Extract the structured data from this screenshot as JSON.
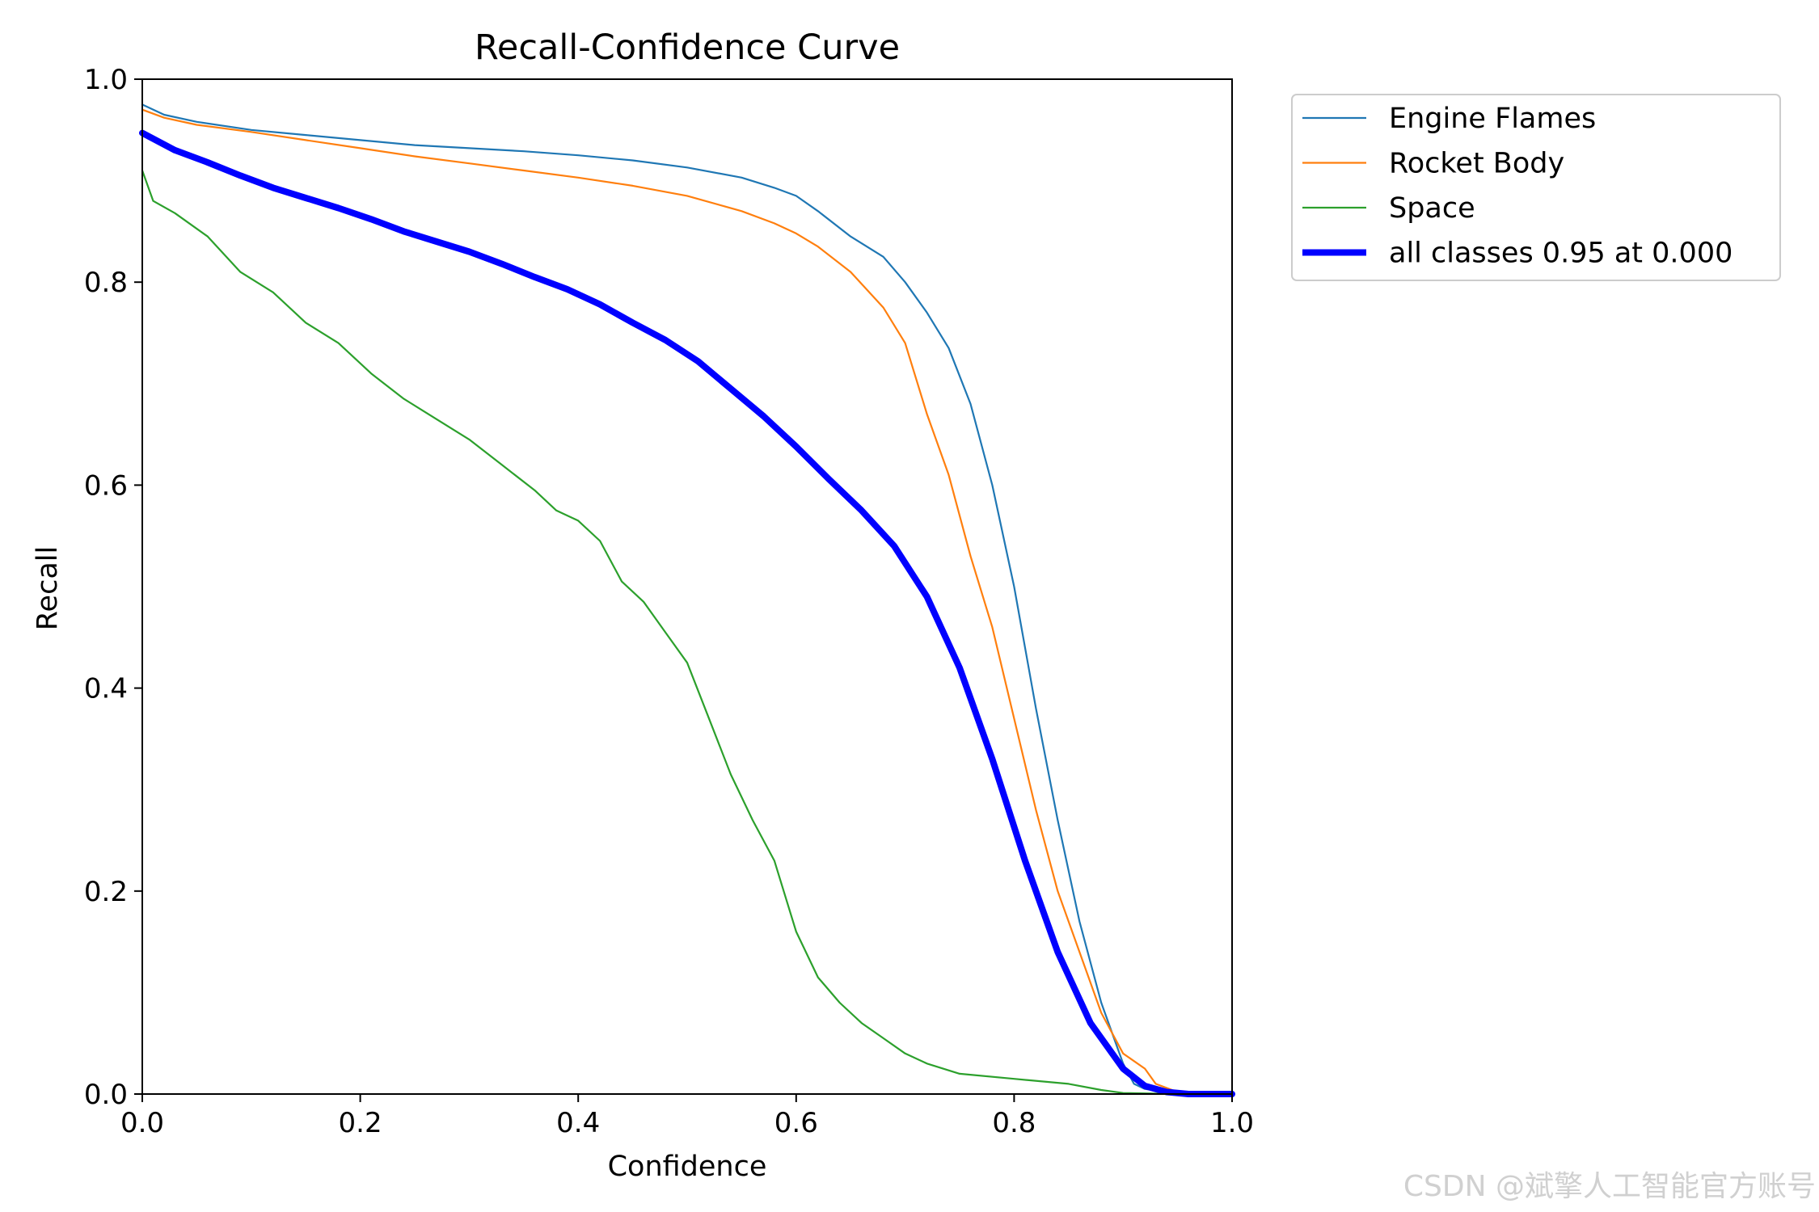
{
  "chart_data": {
    "type": "line",
    "title": "Recall-Confidence Curve",
    "xlabel": "Confidence",
    "ylabel": "Recall",
    "xlim": [
      0,
      1
    ],
    "ylim": [
      0,
      1
    ],
    "grid": false,
    "legend_position": "outside-top-right",
    "xticks": [
      "0.0",
      "0.2",
      "0.4",
      "0.6",
      "0.8",
      "1.0"
    ],
    "yticks": [
      "0.0",
      "0.2",
      "0.4",
      "0.6",
      "0.8",
      "1.0"
    ],
    "series": [
      {
        "name": "Engine Flames",
        "color": "#1f77b4",
        "width": "thin",
        "x": [
          0.0,
          0.02,
          0.05,
          0.1,
          0.15,
          0.2,
          0.25,
          0.3,
          0.35,
          0.4,
          0.45,
          0.5,
          0.55,
          0.58,
          0.6,
          0.62,
          0.65,
          0.68,
          0.7,
          0.72,
          0.74,
          0.76,
          0.78,
          0.8,
          0.82,
          0.84,
          0.86,
          0.88,
          0.9,
          0.91,
          0.92,
          0.94,
          0.96,
          1.0
        ],
        "y": [
          0.975,
          0.965,
          0.958,
          0.95,
          0.945,
          0.94,
          0.935,
          0.932,
          0.929,
          0.925,
          0.92,
          0.913,
          0.903,
          0.893,
          0.885,
          0.87,
          0.845,
          0.825,
          0.8,
          0.77,
          0.735,
          0.68,
          0.6,
          0.5,
          0.38,
          0.27,
          0.17,
          0.09,
          0.03,
          0.01,
          0.005,
          0.002,
          0.0,
          0.0
        ]
      },
      {
        "name": "Rocket Body",
        "color": "#ff7f0e",
        "width": "thin",
        "x": [
          0.0,
          0.02,
          0.05,
          0.1,
          0.15,
          0.2,
          0.25,
          0.3,
          0.35,
          0.4,
          0.45,
          0.5,
          0.55,
          0.58,
          0.6,
          0.62,
          0.65,
          0.68,
          0.7,
          0.72,
          0.74,
          0.76,
          0.78,
          0.8,
          0.82,
          0.84,
          0.86,
          0.88,
          0.9,
          0.92,
          0.93,
          0.95,
          1.0
        ],
        "y": [
          0.97,
          0.962,
          0.955,
          0.948,
          0.94,
          0.932,
          0.924,
          0.917,
          0.91,
          0.903,
          0.895,
          0.885,
          0.87,
          0.858,
          0.848,
          0.835,
          0.81,
          0.775,
          0.74,
          0.67,
          0.61,
          0.53,
          0.46,
          0.37,
          0.28,
          0.2,
          0.14,
          0.08,
          0.04,
          0.025,
          0.01,
          0.002,
          0.0
        ]
      },
      {
        "name": "Space",
        "color": "#2ca02c",
        "width": "thin",
        "x": [
          0.0,
          0.01,
          0.03,
          0.06,
          0.09,
          0.12,
          0.15,
          0.18,
          0.21,
          0.24,
          0.27,
          0.3,
          0.33,
          0.36,
          0.38,
          0.4,
          0.42,
          0.44,
          0.46,
          0.48,
          0.5,
          0.52,
          0.54,
          0.56,
          0.58,
          0.6,
          0.62,
          0.64,
          0.66,
          0.68,
          0.7,
          0.72,
          0.75,
          0.8,
          0.85,
          0.88,
          0.9,
          0.95,
          1.0
        ],
        "y": [
          0.91,
          0.88,
          0.868,
          0.845,
          0.81,
          0.79,
          0.76,
          0.74,
          0.71,
          0.685,
          0.665,
          0.645,
          0.62,
          0.595,
          0.575,
          0.565,
          0.545,
          0.505,
          0.485,
          0.455,
          0.425,
          0.37,
          0.315,
          0.27,
          0.23,
          0.16,
          0.115,
          0.09,
          0.07,
          0.055,
          0.04,
          0.03,
          0.02,
          0.015,
          0.01,
          0.004,
          0.001,
          0.0,
          0.0
        ]
      },
      {
        "name": "all classes 0.95 at 0.000",
        "color": "#0000ff",
        "width": "thick",
        "x": [
          0.0,
          0.03,
          0.06,
          0.09,
          0.12,
          0.15,
          0.18,
          0.21,
          0.24,
          0.27,
          0.3,
          0.33,
          0.36,
          0.39,
          0.42,
          0.45,
          0.48,
          0.51,
          0.54,
          0.57,
          0.6,
          0.63,
          0.66,
          0.69,
          0.72,
          0.75,
          0.78,
          0.81,
          0.84,
          0.87,
          0.9,
          0.92,
          0.94,
          0.96,
          1.0
        ],
        "y": [
          0.947,
          0.93,
          0.918,
          0.905,
          0.893,
          0.883,
          0.873,
          0.862,
          0.85,
          0.84,
          0.83,
          0.818,
          0.805,
          0.793,
          0.778,
          0.76,
          0.743,
          0.722,
          0.695,
          0.668,
          0.638,
          0.606,
          0.575,
          0.54,
          0.49,
          0.42,
          0.33,
          0.23,
          0.14,
          0.07,
          0.025,
          0.008,
          0.002,
          0.0,
          0.0
        ]
      }
    ]
  },
  "watermark": "CSDN @斌擎人工智能官方账号"
}
